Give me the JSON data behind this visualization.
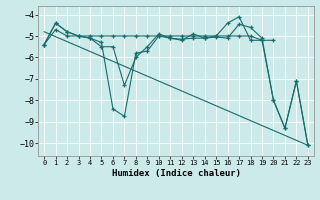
{
  "xlabel": "Humidex (Indice chaleur)",
  "background_color": "#cceaea",
  "grid_color": "#aad4d4",
  "line_color": "#1a6b6b",
  "xlim": [
    -0.5,
    23.5
  ],
  "ylim": [
    -10.6,
    -3.6
  ],
  "yticks": [
    -10,
    -9,
    -8,
    -7,
    -6,
    -5,
    -4
  ],
  "xticks": [
    0,
    1,
    2,
    3,
    4,
    5,
    6,
    7,
    8,
    9,
    10,
    11,
    12,
    13,
    14,
    15,
    16,
    17,
    18,
    19,
    20,
    21,
    22,
    23
  ],
  "line1_x": [
    0,
    1,
    2,
    3,
    4,
    5,
    6,
    7,
    8,
    9,
    10,
    11,
    12,
    13,
    14,
    15,
    16,
    17,
    18,
    19,
    20,
    21,
    22,
    23
  ],
  "line1_y": [
    -5.4,
    -4.4,
    -4.8,
    -5.0,
    -5.1,
    -5.3,
    -8.4,
    -8.75,
    -5.8,
    -5.7,
    -5.0,
    -5.1,
    -5.15,
    -5.1,
    -5.1,
    -5.05,
    -5.1,
    -4.45,
    -4.6,
    -5.1,
    -8.0,
    -9.3,
    -7.1,
    -10.1
  ],
  "line2_x": [
    0,
    1,
    2,
    3,
    4,
    5,
    6,
    7,
    8,
    9,
    10,
    11,
    12,
    13,
    14,
    15,
    16,
    17,
    18,
    19,
    20,
    21,
    22,
    23
  ],
  "line2_y": [
    -5.4,
    -4.4,
    -4.8,
    -5.0,
    -5.1,
    -5.5,
    -5.5,
    -7.3,
    -6.0,
    -5.5,
    -4.9,
    -5.1,
    -5.2,
    -4.9,
    -5.1,
    -5.0,
    -4.4,
    -4.1,
    -5.2,
    -5.2,
    -8.0,
    -9.3,
    -7.1,
    -10.1
  ],
  "line3_x": [
    0,
    1,
    2,
    3,
    4,
    5,
    6,
    7,
    8,
    9,
    10,
    11,
    12,
    13,
    14,
    15,
    16,
    17,
    18,
    19,
    20
  ],
  "line3_y": [
    -5.4,
    -4.7,
    -5.0,
    -5.0,
    -5.0,
    -5.0,
    -5.0,
    -5.0,
    -5.0,
    -5.0,
    -5.0,
    -5.0,
    -5.0,
    -5.0,
    -5.0,
    -5.0,
    -5.0,
    -5.0,
    -5.0,
    -5.2,
    -5.2
  ],
  "line4_x": [
    0,
    23
  ],
  "line4_y": [
    -4.8,
    -10.1
  ]
}
